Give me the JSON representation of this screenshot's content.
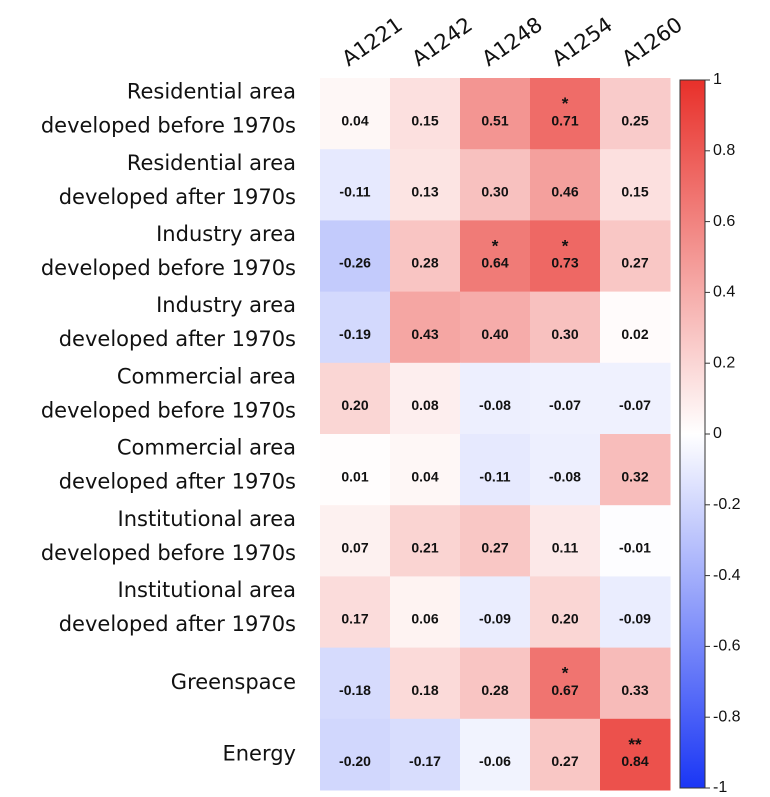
{
  "chart_data": {
    "type": "heatmap",
    "columns": [
      "A1221",
      "A1242",
      "A1248",
      "A1254",
      "A1260"
    ],
    "rows": [
      [
        "Residential area",
        "developed before 1970s"
      ],
      [
        "Residential area",
        "developed after 1970s"
      ],
      [
        "Industry area",
        "developed before 1970s"
      ],
      [
        "Industry area",
        "developed after 1970s"
      ],
      [
        "Commercial area",
        "developed before 1970s"
      ],
      [
        "Commercial area",
        "developed after 1970s"
      ],
      [
        "Institutional area",
        "developed before 1970s"
      ],
      [
        "Institutional area",
        "developed after 1970s"
      ],
      [
        "Greenspace"
      ],
      [
        "Energy"
      ]
    ],
    "values": [
      [
        0.04,
        0.15,
        0.51,
        0.71,
        0.25
      ],
      [
        -0.11,
        0.13,
        0.3,
        0.46,
        0.15
      ],
      [
        -0.26,
        0.28,
        0.64,
        0.73,
        0.27
      ],
      [
        -0.19,
        0.43,
        0.4,
        0.3,
        0.02
      ],
      [
        0.2,
        0.08,
        -0.08,
        -0.07,
        -0.07
      ],
      [
        0.01,
        0.04,
        -0.11,
        -0.08,
        0.32
      ],
      [
        0.07,
        0.21,
        0.27,
        0.11,
        -0.01
      ],
      [
        0.17,
        0.06,
        -0.09,
        0.2,
        -0.09
      ],
      [
        -0.18,
        0.18,
        0.28,
        0.67,
        0.33
      ],
      [
        -0.2,
        -0.17,
        -0.06,
        0.27,
        0.84
      ]
    ],
    "value_labels": [
      [
        "0.04",
        "0.15",
        "0.51",
        "0.71",
        "0.25"
      ],
      [
        "-0.11",
        "0.13",
        "0.30",
        "0.46",
        "0.15"
      ],
      [
        "-0.26",
        "0.28",
        "0.64",
        "0.73",
        "0.27"
      ],
      [
        "-0.19",
        "0.43",
        "0.40",
        "0.30",
        "0.02"
      ],
      [
        "0.20",
        "0.08",
        "-0.08",
        "-0.07",
        "-0.07"
      ],
      [
        "0.01",
        "0.04",
        "-0.11",
        "-0.08",
        "0.32"
      ],
      [
        "0.07",
        "0.21",
        "0.27",
        "0.11",
        "-0.01"
      ],
      [
        "0.17",
        "0.06",
        "-0.09",
        "0.20",
        "-0.09"
      ],
      [
        "-0.18",
        "0.18",
        "0.28",
        "0.67",
        "0.33"
      ],
      [
        "-0.20",
        "-0.17",
        "-0.06",
        "0.27",
        "0.84"
      ]
    ],
    "significance": [
      [
        null,
        null,
        null,
        "*",
        null
      ],
      [
        null,
        null,
        null,
        null,
        null
      ],
      [
        null,
        null,
        "*",
        "*",
        null
      ],
      [
        null,
        null,
        null,
        null,
        null
      ],
      [
        null,
        null,
        null,
        null,
        null
      ],
      [
        null,
        null,
        null,
        null,
        null
      ],
      [
        null,
        null,
        null,
        null,
        null
      ],
      [
        null,
        null,
        null,
        null,
        null
      ],
      [
        null,
        null,
        null,
        "*",
        null
      ],
      [
        null,
        null,
        null,
        null,
        "**"
      ]
    ],
    "colormap": [
      "#1a36f5",
      "#ffffff",
      "#e8302a"
    ],
    "zlim": [
      -1,
      1
    ],
    "colorbar_ticks": [
      1,
      0.8,
      0.6,
      0.4,
      0.2,
      0,
      -0.2,
      -0.4,
      -0.6,
      -0.8,
      -1
    ]
  }
}
